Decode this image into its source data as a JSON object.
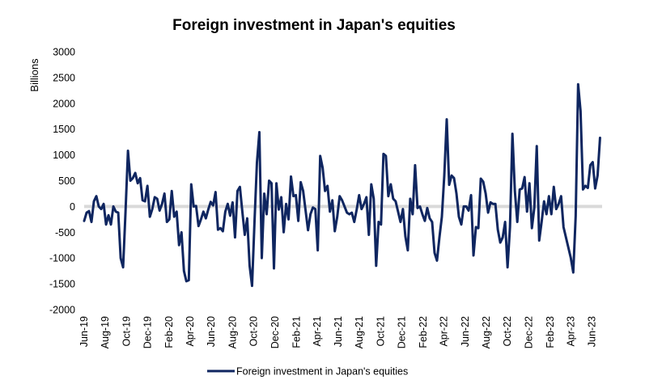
{
  "chart_data": {
    "type": "line",
    "title": "Foreign investment in Japan's equities",
    "ylabel": "Billions",
    "xlabel": "",
    "ylim": [
      -2000,
      3000
    ],
    "yticks": [
      -2000,
      -1500,
      -1000,
      -500,
      0,
      500,
      1000,
      1500,
      2000,
      2500,
      3000
    ],
    "ytick_labels": [
      "-2000",
      "-1500",
      "-1000",
      "-500",
      "0",
      "500",
      "1000",
      "1500",
      "2000",
      "2500",
      "3000"
    ],
    "x_start": "2019-06-01",
    "x_end": "2023-06-30",
    "xtick_dates": [
      "2019-06-01",
      "2019-08-01",
      "2019-10-01",
      "2019-12-01",
      "2020-02-01",
      "2020-04-01",
      "2020-06-01",
      "2020-08-01",
      "2020-10-01",
      "2020-12-01",
      "2021-02-01",
      "2021-04-01",
      "2021-06-01",
      "2021-08-01",
      "2021-10-01",
      "2021-12-01",
      "2022-02-01",
      "2022-04-01",
      "2022-06-01",
      "2022-08-01",
      "2022-10-01",
      "2022-12-01",
      "2023-02-01",
      "2023-04-01",
      "2023-06-01"
    ],
    "xtick_labels": [
      "Jun-19",
      "Aug-19",
      "Oct-19",
      "Dec-19",
      "Feb-20",
      "Apr-20",
      "Jun-20",
      "Aug-20",
      "Oct-20",
      "Dec-20",
      "Feb-21",
      "Apr-21",
      "Jun-21",
      "Aug-21",
      "Oct-21",
      "Dec-21",
      "Feb-22",
      "Apr-22",
      "Jun-22",
      "Aug-22",
      "Oct-22",
      "Dec-22",
      "Feb-23",
      "Apr-23",
      "Jun-23"
    ],
    "grid": false,
    "zero_line": true,
    "legend_position": "bottom",
    "series": [
      {
        "name": "Foreign investment in Japan's equities",
        "color": "#0f2660",
        "x": [
          "2019-06-01",
          "2019-06-08",
          "2019-06-15",
          "2019-06-22",
          "2019-06-29",
          "2019-07-06",
          "2019-07-13",
          "2019-07-20",
          "2019-07-27",
          "2019-08-03",
          "2019-08-10",
          "2019-08-17",
          "2019-08-24",
          "2019-08-31",
          "2019-09-07",
          "2019-09-14",
          "2019-09-21",
          "2019-09-28",
          "2019-10-05",
          "2019-10-12",
          "2019-10-19",
          "2019-10-26",
          "2019-11-02",
          "2019-11-09",
          "2019-11-16",
          "2019-11-23",
          "2019-11-30",
          "2019-12-07",
          "2019-12-14",
          "2019-12-21",
          "2019-12-28",
          "2020-01-04",
          "2020-01-11",
          "2020-01-18",
          "2020-01-25",
          "2020-02-01",
          "2020-02-08",
          "2020-02-15",
          "2020-02-22",
          "2020-02-29",
          "2020-03-07",
          "2020-03-14",
          "2020-03-21",
          "2020-03-28",
          "2020-04-04",
          "2020-04-11",
          "2020-04-18",
          "2020-04-25",
          "2020-05-02",
          "2020-05-09",
          "2020-05-16",
          "2020-05-23",
          "2020-05-30",
          "2020-06-06",
          "2020-06-13",
          "2020-06-20",
          "2020-06-27",
          "2020-07-04",
          "2020-07-11",
          "2020-07-18",
          "2020-07-25",
          "2020-08-01",
          "2020-08-08",
          "2020-08-15",
          "2020-08-22",
          "2020-08-29",
          "2020-09-05",
          "2020-09-12",
          "2020-09-19",
          "2020-09-26",
          "2020-10-03",
          "2020-10-10",
          "2020-10-17",
          "2020-10-24",
          "2020-10-31",
          "2020-11-07",
          "2020-11-14",
          "2020-11-21",
          "2020-11-28",
          "2020-12-05",
          "2020-12-12",
          "2020-12-19",
          "2020-12-26",
          "2021-01-02",
          "2021-01-09",
          "2021-01-16",
          "2021-01-23",
          "2021-01-30",
          "2021-02-06",
          "2021-02-13",
          "2021-02-20",
          "2021-02-27",
          "2021-03-06",
          "2021-03-13",
          "2021-03-20",
          "2021-03-27",
          "2021-04-03",
          "2021-04-10",
          "2021-04-17",
          "2021-04-24",
          "2021-05-01",
          "2021-05-08",
          "2021-05-15",
          "2021-05-22",
          "2021-05-29",
          "2021-06-05",
          "2021-06-12",
          "2021-06-19",
          "2021-06-26",
          "2021-07-03",
          "2021-07-10",
          "2021-07-17",
          "2021-07-24",
          "2021-07-31",
          "2021-08-07",
          "2021-08-14",
          "2021-08-21",
          "2021-08-28",
          "2021-09-04",
          "2021-09-11",
          "2021-09-18",
          "2021-09-25",
          "2021-10-02",
          "2021-10-09",
          "2021-10-16",
          "2021-10-23",
          "2021-10-30",
          "2021-11-06",
          "2021-11-13",
          "2021-11-20",
          "2021-11-27",
          "2021-12-04",
          "2021-12-11",
          "2021-12-18",
          "2021-12-25",
          "2022-01-01",
          "2022-01-08",
          "2022-01-15",
          "2022-01-22",
          "2022-01-29",
          "2022-02-05",
          "2022-02-12",
          "2022-02-19",
          "2022-02-26",
          "2022-03-05",
          "2022-03-12",
          "2022-03-19",
          "2022-03-26",
          "2022-04-02",
          "2022-04-09",
          "2022-04-16",
          "2022-04-23",
          "2022-04-30",
          "2022-05-07",
          "2022-05-14",
          "2022-05-21",
          "2022-05-28",
          "2022-06-04",
          "2022-06-11",
          "2022-06-18",
          "2022-06-25",
          "2022-07-02",
          "2022-07-09",
          "2022-07-16",
          "2022-07-23",
          "2022-07-30",
          "2022-08-06",
          "2022-08-13",
          "2022-08-20",
          "2022-08-27",
          "2022-09-03",
          "2022-09-10",
          "2022-09-17",
          "2022-09-24",
          "2022-10-01",
          "2022-10-08",
          "2022-10-15",
          "2022-10-22",
          "2022-10-29",
          "2022-11-05",
          "2022-11-12",
          "2022-11-19",
          "2022-11-26",
          "2022-12-03",
          "2022-12-10",
          "2022-12-17",
          "2022-12-24",
          "2022-12-31",
          "2023-01-07",
          "2023-01-14",
          "2023-01-21",
          "2023-01-28",
          "2023-02-04",
          "2023-02-11",
          "2023-02-18",
          "2023-02-25",
          "2023-03-04",
          "2023-03-11",
          "2023-03-18",
          "2023-03-25",
          "2023-04-01",
          "2023-04-08",
          "2023-04-15",
          "2023-04-22",
          "2023-04-29",
          "2023-05-06",
          "2023-05-13",
          "2023-05-20",
          "2023-05-27",
          "2023-06-03",
          "2023-06-10",
          "2023-06-17",
          "2023-06-24"
        ],
        "y": [
          -280,
          -120,
          -90,
          -300,
          100,
          200,
          0,
          -50,
          50,
          -350,
          -170,
          -350,
          0,
          -100,
          -120,
          -1000,
          -1180,
          -100,
          1080,
          500,
          550,
          650,
          450,
          550,
          120,
          100,
          400,
          -200,
          -50,
          180,
          150,
          -80,
          50,
          250,
          -300,
          -250,
          300,
          -200,
          -100,
          -750,
          -500,
          -1250,
          -1450,
          -1430,
          430,
          0,
          10,
          -380,
          -250,
          -100,
          -230,
          -60,
          90,
          20,
          280,
          -450,
          -420,
          -480,
          -100,
          50,
          -180,
          80,
          -600,
          300,
          380,
          -100,
          -550,
          -230,
          -1150,
          -1540,
          -300,
          850,
          1440,
          -1000,
          250,
          -150,
          500,
          450,
          -1200,
          450,
          -60,
          180,
          -500,
          50,
          -250,
          580,
          200,
          220,
          -280,
          470,
          300,
          -80,
          -460,
          -150,
          -20,
          -50,
          -850,
          980,
          750,
          300,
          400,
          -100,
          120,
          -480,
          -200,
          200,
          120,
          0,
          -120,
          -150,
          -120,
          -300,
          -60,
          220,
          -50,
          50,
          180,
          -550,
          430,
          150,
          -1150,
          -300,
          -350,
          1020,
          980,
          200,
          430,
          150,
          100,
          -100,
          -300,
          -50,
          -580,
          -850,
          150,
          -150,
          800,
          -30,
          0,
          -150,
          -280,
          -30,
          -230,
          -300,
          -900,
          -1050,
          -600,
          -200,
          600,
          1690,
          420,
          600,
          550,
          250,
          -200,
          -350,
          0,
          0,
          -80,
          220,
          -950,
          -400,
          -420,
          540,
          480,
          250,
          -120,
          80,
          50,
          50,
          -450,
          -700,
          -600,
          -300,
          -1180,
          -400,
          1410,
          300,
          -300,
          330,
          350,
          570,
          -100,
          450,
          -420,
          -20,
          1170,
          -660,
          -300,
          100,
          -150,
          200,
          -150,
          380,
          -50,
          50,
          200,
          -400,
          -600,
          -800,
          -1000,
          -1280,
          -180,
          2370,
          1850,
          330,
          400,
          360,
          800,
          860,
          350,
          600,
          1330
        ]
      }
    ]
  }
}
